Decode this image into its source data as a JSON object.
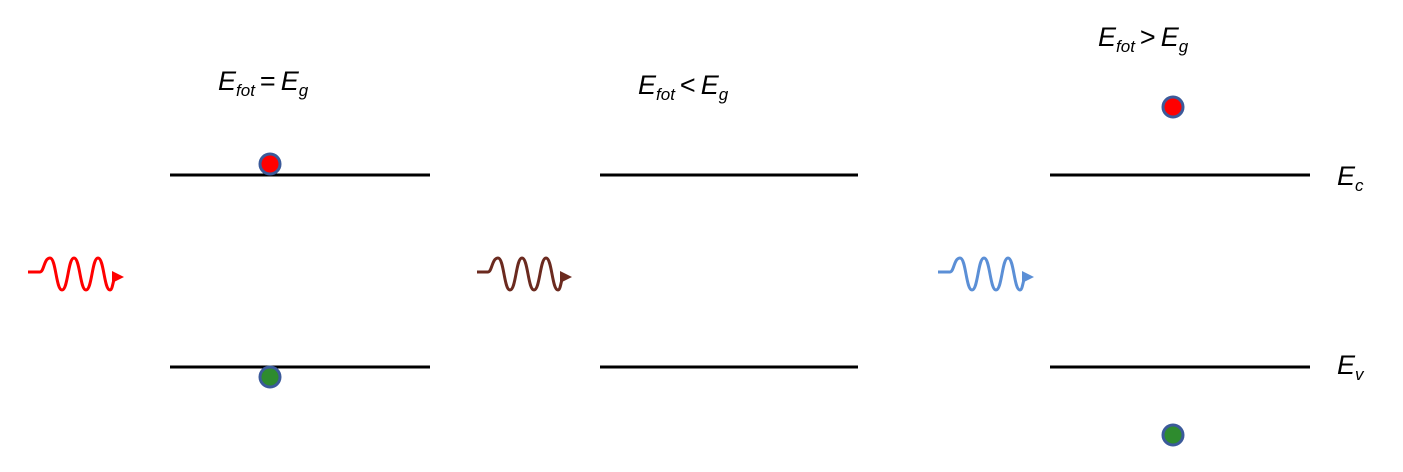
{
  "panels": [
    {
      "label": {
        "E": "E",
        "sub1": "fot",
        "op": "=",
        "E2": "E",
        "sub2": "g"
      },
      "photon_color": "#ff0000",
      "electron_color": "#ff0000",
      "hole_color": "#2e8b2e",
      "carrier_outline": "#3b5a9a"
    },
    {
      "label": {
        "E": "E",
        "sub1": "fot",
        "op": "<",
        "E2": "E",
        "sub2": "g"
      },
      "photon_color": "#6b2a1f"
    },
    {
      "label": {
        "E": "E",
        "sub1": "fot",
        "op": ">",
        "E2": "E",
        "sub2": "g"
      },
      "photon_color": "#5b8fd6",
      "electron_color": "#ff0000",
      "hole_color": "#2e8b2e",
      "carrier_outline": "#3b5a9a"
    }
  ],
  "band_labels": {
    "conduction": {
      "E": "E",
      "sub": "c"
    },
    "valence": {
      "E": "E",
      "sub": "v"
    }
  },
  "icons": {
    "photon": "wavy-arrow-icon",
    "electron": "filled-circle-icon",
    "hole": "filled-circle-icon"
  }
}
